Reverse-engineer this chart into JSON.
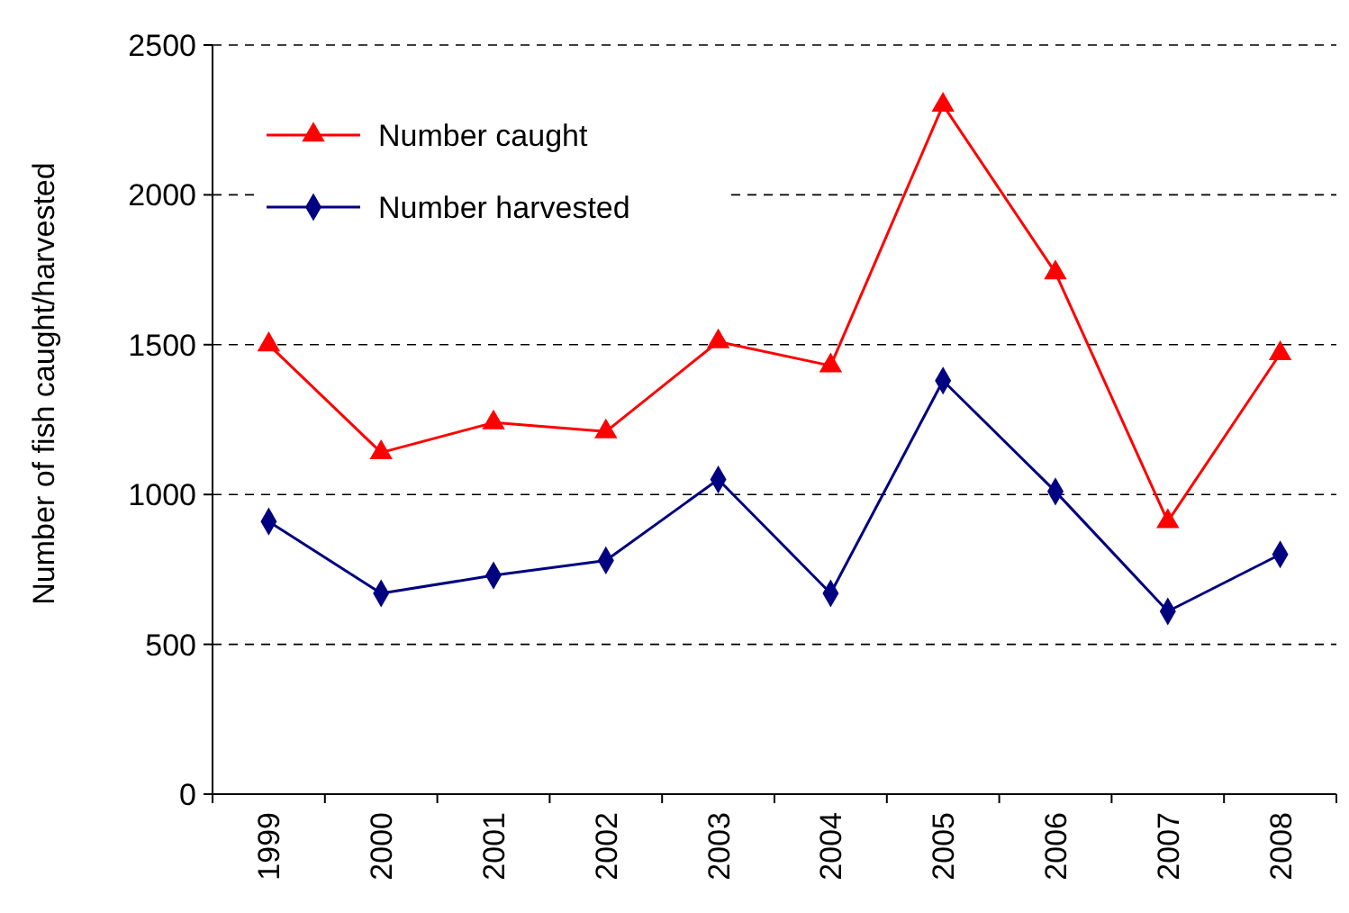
{
  "chart_data": {
    "type": "line",
    "ylabel": "Number of fish caught/harvested",
    "categories": [
      "1999",
      "2000",
      "2001",
      "2002",
      "2003",
      "2004",
      "2005",
      "2006",
      "2007",
      "2008"
    ],
    "series": [
      {
        "name": "Number caught",
        "color": "#ff0000",
        "marker": "triangle",
        "values": [
          1500,
          1140,
          1240,
          1210,
          1510,
          1430,
          2300,
          1740,
          910,
          1470
        ]
      },
      {
        "name": "Number harvested",
        "color": "#000080",
        "marker": "diamond",
        "values": [
          910,
          670,
          730,
          780,
          1050,
          670,
          1380,
          1010,
          610,
          800
        ]
      }
    ],
    "ylim": [
      0,
      2500
    ],
    "yticks": [
      0,
      500,
      1000,
      1500,
      2000,
      2500
    ],
    "grid": "y",
    "legend": "top left"
  }
}
